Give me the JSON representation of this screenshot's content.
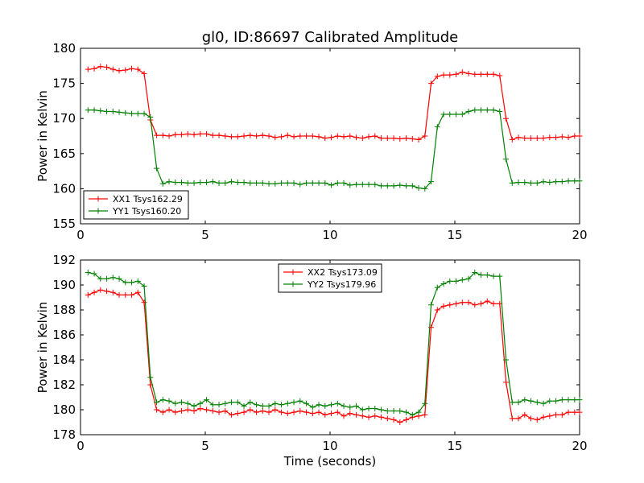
{
  "title": "gl0, ID:86697 Calibrated Amplitude",
  "chart_data": [
    {
      "type": "line",
      "ylabel": "Power in Kelvin",
      "xlabel": "",
      "xlim": [
        0,
        20
      ],
      "ylim": [
        155,
        180
      ],
      "xticks": [
        0,
        5,
        10,
        15,
        20
      ],
      "yticks": [
        155,
        160,
        165,
        170,
        175,
        180
      ],
      "grid": false,
      "legend_position": "lower-left",
      "x": [
        0.3,
        0.55,
        0.8,
        1.05,
        1.3,
        1.55,
        1.8,
        2.05,
        2.3,
        2.55,
        2.8,
        3.05,
        3.3,
        3.55,
        3.8,
        4.05,
        4.3,
        4.55,
        4.8,
        5.05,
        5.3,
        5.55,
        5.8,
        6.05,
        6.3,
        6.55,
        6.8,
        7.05,
        7.3,
        7.55,
        7.8,
        8.05,
        8.3,
        8.55,
        8.8,
        9.05,
        9.3,
        9.55,
        9.8,
        10.05,
        10.3,
        10.55,
        10.8,
        11.05,
        11.3,
        11.55,
        11.8,
        12.05,
        12.3,
        12.55,
        12.8,
        13.05,
        13.3,
        13.55,
        13.8,
        14.05,
        14.3,
        14.55,
        14.8,
        15.05,
        15.3,
        15.55,
        15.8,
        16.05,
        16.3,
        16.55,
        16.8,
        17.05,
        17.3,
        17.55,
        17.8,
        18.05,
        18.3,
        18.55,
        18.8,
        19.05,
        19.3,
        19.55,
        19.8,
        20.0
      ],
      "series": [
        {
          "name": "XX1 Tsys162.29",
          "color": "#ff0000",
          "values": [
            177.0,
            177.1,
            177.4,
            177.3,
            177.0,
            176.8,
            176.9,
            177.1,
            177.0,
            176.4,
            169.8,
            167.6,
            167.6,
            167.5,
            167.7,
            167.7,
            167.8,
            167.7,
            167.8,
            167.8,
            167.6,
            167.6,
            167.5,
            167.4,
            167.4,
            167.5,
            167.6,
            167.5,
            167.6,
            167.5,
            167.3,
            167.4,
            167.6,
            167.4,
            167.5,
            167.5,
            167.5,
            167.4,
            167.2,
            167.3,
            167.5,
            167.4,
            167.5,
            167.3,
            167.2,
            167.4,
            167.5,
            167.2,
            167.2,
            167.2,
            167.1,
            167.2,
            167.1,
            167.0,
            167.5,
            175.0,
            176.0,
            176.2,
            176.2,
            176.3,
            176.6,
            176.4,
            176.3,
            176.3,
            176.3,
            176.3,
            176.1,
            170.0,
            167.0,
            167.3,
            167.2,
            167.2,
            167.2,
            167.2,
            167.3,
            167.3,
            167.4,
            167.3,
            167.5,
            167.5
          ]
        },
        {
          "name": "YY1 Tsys160.20",
          "color": "#008000",
          "values": [
            171.2,
            171.2,
            171.1,
            171.0,
            171.0,
            170.9,
            170.8,
            170.7,
            170.7,
            170.7,
            170.2,
            162.9,
            160.7,
            161.0,
            160.9,
            160.9,
            160.8,
            160.8,
            160.9,
            160.9,
            161.0,
            160.8,
            160.8,
            161.0,
            160.9,
            160.9,
            160.8,
            160.8,
            160.8,
            160.7,
            160.7,
            160.8,
            160.8,
            160.8,
            160.6,
            160.8,
            160.8,
            160.8,
            160.8,
            160.5,
            160.8,
            160.8,
            160.5,
            160.6,
            160.6,
            160.6,
            160.6,
            160.4,
            160.4,
            160.4,
            160.5,
            160.4,
            160.4,
            160.1,
            160.0,
            161.0,
            168.8,
            170.6,
            170.6,
            170.6,
            170.6,
            171.0,
            171.2,
            171.2,
            171.2,
            171.2,
            171.0,
            164.2,
            160.8,
            160.9,
            160.9,
            160.8,
            160.8,
            161.0,
            160.9,
            161.0,
            161.0,
            161.1,
            161.1,
            161.1
          ]
        }
      ]
    },
    {
      "type": "line",
      "ylabel": "Power in Kelvin",
      "xlabel": "Time (seconds)",
      "xlim": [
        0,
        20
      ],
      "ylim": [
        178,
        192
      ],
      "xticks": [
        0,
        5,
        10,
        15,
        20
      ],
      "yticks": [
        178,
        180,
        182,
        184,
        186,
        188,
        190,
        192
      ],
      "grid": false,
      "legend_position": "upper-center",
      "x": [
        0.3,
        0.55,
        0.8,
        1.05,
        1.3,
        1.55,
        1.8,
        2.05,
        2.3,
        2.55,
        2.8,
        3.05,
        3.3,
        3.55,
        3.8,
        4.05,
        4.3,
        4.55,
        4.8,
        5.05,
        5.3,
        5.55,
        5.8,
        6.05,
        6.3,
        6.55,
        6.8,
        7.05,
        7.3,
        7.55,
        7.8,
        8.05,
        8.3,
        8.55,
        8.8,
        9.05,
        9.3,
        9.55,
        9.8,
        10.05,
        10.3,
        10.55,
        10.8,
        11.05,
        11.3,
        11.55,
        11.8,
        12.05,
        12.3,
        12.55,
        12.8,
        13.05,
        13.3,
        13.55,
        13.8,
        14.05,
        14.3,
        14.55,
        14.8,
        15.05,
        15.3,
        15.55,
        15.8,
        16.05,
        16.3,
        16.55,
        16.8,
        17.05,
        17.3,
        17.55,
        17.8,
        18.05,
        18.3,
        18.55,
        18.8,
        19.05,
        19.3,
        19.55,
        19.8,
        20.0
      ],
      "series": [
        {
          "name": "XX2 Tsys173.09",
          "color": "#ff0000",
          "values": [
            189.2,
            189.4,
            189.6,
            189.5,
            189.4,
            189.2,
            189.2,
            189.2,
            189.4,
            188.6,
            182.0,
            180.0,
            179.8,
            180.0,
            179.8,
            179.9,
            180.0,
            179.9,
            180.1,
            180.0,
            179.9,
            179.8,
            179.9,
            179.6,
            179.7,
            179.8,
            180.0,
            179.8,
            179.9,
            179.8,
            180.0,
            179.8,
            179.7,
            179.8,
            179.9,
            179.8,
            179.7,
            179.8,
            179.6,
            179.7,
            179.8,
            179.5,
            179.7,
            179.6,
            179.5,
            179.4,
            179.5,
            179.4,
            179.3,
            179.2,
            179.0,
            179.2,
            179.4,
            179.5,
            179.6,
            186.6,
            188.0,
            188.3,
            188.4,
            188.5,
            188.6,
            188.6,
            188.4,
            188.5,
            188.7,
            188.5,
            188.5,
            182.2,
            179.3,
            179.3,
            179.6,
            179.3,
            179.2,
            179.4,
            179.5,
            179.6,
            179.6,
            179.8,
            179.8,
            179.8
          ]
        },
        {
          "name": "YY2 Tsys179.96",
          "color": "#008000",
          "values": [
            191.0,
            190.9,
            190.5,
            190.5,
            190.6,
            190.5,
            190.2,
            190.2,
            190.3,
            189.9,
            182.6,
            180.6,
            180.8,
            180.7,
            180.5,
            180.6,
            180.5,
            180.3,
            180.5,
            180.8,
            180.4,
            180.4,
            180.5,
            180.6,
            180.6,
            180.3,
            180.6,
            180.4,
            180.3,
            180.3,
            180.5,
            180.4,
            180.5,
            180.6,
            180.7,
            180.5,
            180.2,
            180.4,
            180.3,
            180.4,
            180.5,
            180.3,
            180.2,
            180.3,
            180.0,
            180.1,
            180.1,
            180.0,
            179.9,
            179.9,
            179.9,
            179.8,
            179.6,
            179.8,
            180.5,
            188.4,
            189.8,
            190.1,
            190.3,
            190.3,
            190.4,
            190.5,
            191.0,
            190.8,
            190.8,
            190.7,
            190.7,
            184.0,
            180.6,
            180.6,
            180.8,
            180.7,
            180.6,
            180.5,
            180.7,
            180.7,
            180.8,
            180.8,
            180.8,
            180.8
          ]
        }
      ]
    }
  ]
}
